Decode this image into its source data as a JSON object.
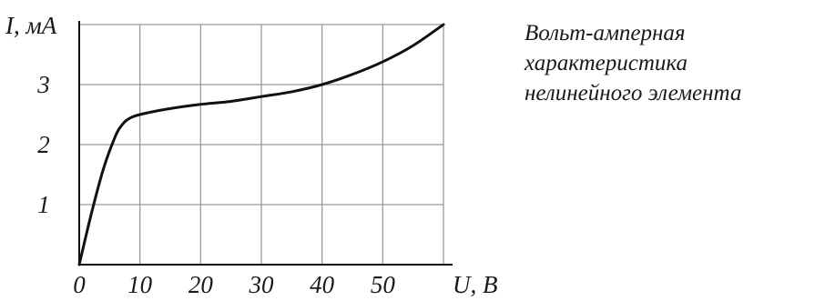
{
  "chart_data": {
    "type": "line",
    "title": "",
    "caption": [
      "Вольт-амперная",
      "характеристика",
      "нелинейного элемента"
    ],
    "ylabel": "I, мА",
    "xlabel": "U, В",
    "xlim": [
      0,
      60
    ],
    "ylim": [
      0,
      4
    ],
    "x_ticks": [
      0,
      10,
      20,
      30,
      40,
      50
    ],
    "x_tick_labels": [
      "0",
      "10",
      "20",
      "30",
      "40",
      "50"
    ],
    "y_ticks": [
      1,
      2,
      3
    ],
    "y_tick_labels": [
      "1",
      "2",
      "3"
    ],
    "x_grid": [
      10,
      20,
      30,
      40,
      50,
      60
    ],
    "y_grid": [
      1,
      2,
      3,
      4
    ],
    "grid": true,
    "series": [
      {
        "x": [
          0,
          2,
          4,
          6,
          7,
          8,
          10,
          15,
          20,
          25,
          30,
          35,
          40,
          45,
          50,
          55,
          60
        ],
        "y": [
          0,
          0.85,
          1.6,
          2.15,
          2.32,
          2.42,
          2.5,
          2.6,
          2.67,
          2.72,
          2.8,
          2.88,
          3.0,
          3.17,
          3.38,
          3.65,
          4.0
        ]
      }
    ],
    "color": "#111111",
    "grid_color": "#9a9a9a"
  }
}
